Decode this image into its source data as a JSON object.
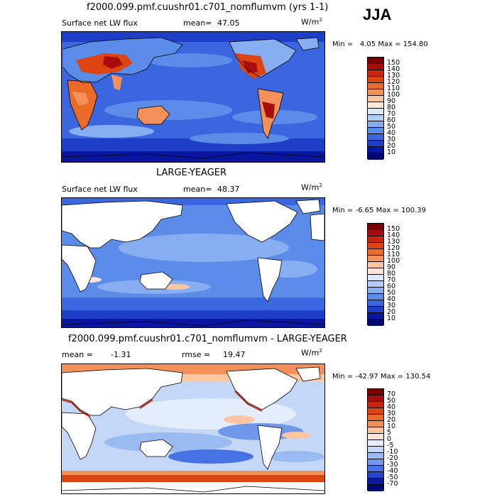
{
  "season": "JJA",
  "panels": [
    {
      "title": "f2000.099.pmf.cuushr01.c701_nomflumvm (yrs 1-1)",
      "left_label": "Surface net LW flux",
      "mean_label": "mean=",
      "mean_value": "47.05",
      "units": "W/m",
      "units_exp": "2",
      "min_label": "Min =",
      "min_value": "4.05",
      "max_label": "Max =",
      "max_value": "154.80",
      "colorbar_labels": [
        "150",
        "140",
        "130",
        "120",
        "110",
        "100",
        "90",
        "80",
        "70",
        "60",
        "50",
        "40",
        "30",
        "20",
        "10"
      ]
    },
    {
      "title": "LARGE-YEAGER",
      "left_label": "Surface net LW flux",
      "mean_label": "mean=",
      "mean_value": "48.37",
      "units": "W/m",
      "units_exp": "2",
      "min_label": "Min =",
      "min_value": "-6.65",
      "max_label": "Max =",
      "max_value": "100.39",
      "colorbar_labels": [
        "150",
        "140",
        "130",
        "120",
        "110",
        "100",
        "90",
        "80",
        "70",
        "60",
        "50",
        "40",
        "30",
        "20",
        "10"
      ]
    },
    {
      "title": "f2000.099.pmf.cuushr01.c701_nomflumvm - LARGE-YEAGER",
      "left_label": "mean =",
      "mean_value": "-1.31",
      "rmse_label": "rmse =",
      "rmse_value": "19.47",
      "units": "W/m",
      "units_exp": "2",
      "min_label": "Min =",
      "min_value": "-42.97",
      "max_label": "Max =",
      "max_value": "130.54",
      "colorbar_labels": [
        "70",
        "50",
        "40",
        "30",
        "20",
        "10",
        "5",
        "0",
        "-5",
        "-10",
        "-20",
        "-30",
        "-40",
        "-50",
        "-70"
      ]
    }
  ],
  "colors": {
    "seq": [
      "#7a0000",
      "#a80c0c",
      "#c8260e",
      "#dc4412",
      "#ea6a2a",
      "#f4915a",
      "#fcc6a2",
      "#fbe5d6",
      "#dbe7fa",
      "#b4cdf6",
      "#86aef0",
      "#5c8cea",
      "#3a66e0",
      "#1f3ec8",
      "#0a16a0",
      "#000a70"
    ],
    "div": [
      "#7a0000",
      "#a80c0c",
      "#c8260e",
      "#dc4412",
      "#ea6a2a",
      "#f4915a",
      "#fcc6a2",
      "#fbe5d6",
      "#e4edfb",
      "#c4d7f7",
      "#9abbf1",
      "#6f98eb",
      "#4672e3",
      "#2646cd",
      "#0c1aa3",
      "#000a70"
    ]
  }
}
